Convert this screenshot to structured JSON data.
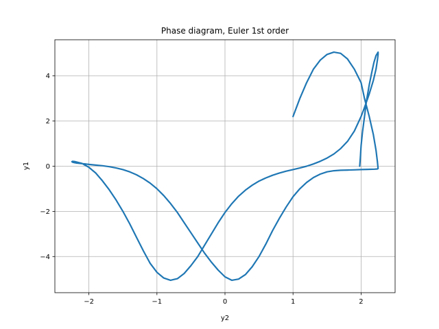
{
  "chart_data": {
    "type": "line",
    "title": "Phase diagram, Euler 1st order",
    "xlabel": "y2",
    "ylabel": "y1",
    "xlim": [
      -2.5,
      2.5
    ],
    "ylim": [
      -5.6,
      5.6
    ],
    "grid": true,
    "line_color": "#1f77b4",
    "x_ticks": [
      -2,
      -1,
      0,
      1,
      2
    ],
    "y_ticks": [
      -4,
      -2,
      0,
      2,
      4
    ],
    "x_tick_labels": [
      "−2",
      "−1",
      "0",
      "1",
      "2"
    ],
    "y_tick_labels": [
      "−4",
      "−2",
      "0",
      "2",
      "4"
    ],
    "series": [
      {
        "x": [
          1.98,
          1.99,
          2.0,
          2.02,
          2.05,
          2.08,
          2.12,
          2.16,
          2.19,
          2.22,
          2.24,
          2.25,
          2.25,
          2.24,
          2.22,
          2.18,
          2.12,
          2.05,
          2.0,
          1.9,
          1.8,
          1.7,
          1.6,
          1.5,
          1.4,
          1.3,
          1.2,
          1.1,
          1.0,
          0.9,
          0.8,
          0.7,
          0.6,
          0.5,
          0.4,
          0.3,
          0.2,
          0.1,
          0.0,
          -0.1,
          -0.2,
          -0.3,
          -0.4,
          -0.5,
          -0.6,
          -0.7,
          -0.8,
          -0.9,
          -1.0,
          -1.1,
          -1.2,
          -1.3,
          -1.4,
          -1.5,
          -1.6,
          -1.7,
          -1.8,
          -1.9,
          -2.0,
          -2.1,
          -2.2,
          -2.24,
          -2.25,
          -2.24,
          -2.22,
          -2.18,
          -2.12,
          -2.05,
          -2.0,
          -1.9,
          -1.8,
          -1.7,
          -1.6,
          -1.5,
          -1.4,
          -1.3,
          -1.2,
          -1.1,
          -1.0,
          -0.9,
          -0.8,
          -0.7,
          -0.6,
          -0.5,
          -0.4,
          -0.3,
          -0.2,
          -0.1,
          0.0,
          0.1,
          0.2,
          0.3,
          0.4,
          0.5,
          0.6,
          0.7,
          0.8,
          0.9,
          1.0,
          1.1,
          1.2,
          1.3,
          1.4,
          1.5,
          1.6,
          1.7,
          1.8,
          1.9,
          2.0,
          2.1,
          2.2,
          2.24,
          2.25,
          2.24,
          2.22,
          2.18,
          2.12,
          2.05,
          2.0,
          1.9,
          1.8,
          1.7,
          1.6,
          1.5,
          1.4,
          1.3,
          1.2,
          1.1,
          1.0
        ],
        "y": [
          0.0,
          0.4,
          0.9,
          1.5,
          2.2,
          2.9,
          3.6,
          4.2,
          4.6,
          4.9,
          5.0,
          5.05,
          4.95,
          4.7,
          4.3,
          3.8,
          3.2,
          2.6,
          2.2,
          1.55,
          1.1,
          0.78,
          0.54,
          0.36,
          0.22,
          0.1,
          0.0,
          -0.08,
          -0.15,
          -0.22,
          -0.3,
          -0.4,
          -0.52,
          -0.66,
          -0.84,
          -1.06,
          -1.33,
          -1.66,
          -2.05,
          -2.5,
          -3.0,
          -3.5,
          -4.0,
          -4.4,
          -4.75,
          -4.98,
          -5.05,
          -4.95,
          -4.7,
          -4.3,
          -3.75,
          -3.15,
          -2.55,
          -2.0,
          -1.5,
          -1.05,
          -0.65,
          -0.3,
          -0.05,
          0.12,
          0.2,
          0.22,
          0.2,
          0.18,
          0.16,
          0.14,
          0.12,
          0.1,
          0.08,
          0.05,
          0.02,
          -0.02,
          -0.08,
          -0.15,
          -0.25,
          -0.38,
          -0.55,
          -0.75,
          -1.0,
          -1.3,
          -1.65,
          -2.05,
          -2.5,
          -2.95,
          -3.4,
          -3.85,
          -4.25,
          -4.6,
          -4.9,
          -5.05,
          -5.0,
          -4.8,
          -4.45,
          -4.0,
          -3.45,
          -2.85,
          -2.3,
          -1.8,
          -1.35,
          -1.0,
          -0.72,
          -0.5,
          -0.35,
          -0.25,
          -0.2,
          -0.18,
          -0.17,
          -0.16,
          -0.15,
          -0.14,
          -0.13,
          -0.12,
          -0.1,
          0.2,
          0.7,
          1.4,
          2.2,
          3.0,
          3.7,
          4.3,
          4.75,
          5.0,
          5.05,
          4.95,
          4.7,
          4.3,
          3.7,
          3.0,
          2.2
        ]
      }
    ]
  }
}
